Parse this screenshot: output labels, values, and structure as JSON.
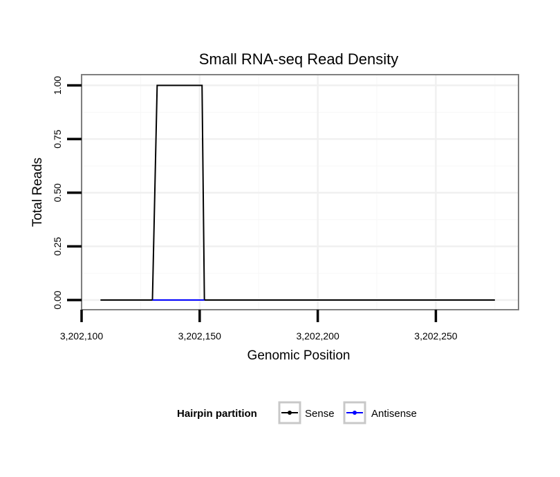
{
  "chart_data": {
    "type": "line",
    "title": "Small RNA-seq Read Density",
    "xlabel": "Genomic Position",
    "ylabel": "Total Reads",
    "xlim": [
      3202100,
      3202285
    ],
    "ylim": [
      -0.045,
      1.05
    ],
    "x_ticks": [
      3202100,
      3202150,
      3202200,
      3202250
    ],
    "x_tick_labels": [
      "3,202,100",
      "3,202,150",
      "3,202,200",
      "3,202,250"
    ],
    "y_ticks": [
      0,
      0.25,
      0.5,
      0.75,
      1.0
    ],
    "y_tick_labels": [
      "0.00",
      "0.25",
      "0.50",
      "0.75",
      "1.00"
    ],
    "grid": true,
    "series": [
      {
        "name": "Sense",
        "color": "#000000",
        "x": [
          3202108,
          3202130,
          3202132,
          3202151,
          3202152,
          3202275
        ],
        "y": [
          0,
          0,
          1,
          1,
          0,
          0
        ]
      },
      {
        "name": "Antisense",
        "color": "#0000ff",
        "x": [
          3202130,
          3202152
        ],
        "y": [
          0,
          0
        ]
      }
    ],
    "legend": {
      "title": "Hairpin partition",
      "position": "bottom",
      "entries": [
        "Sense",
        "Antisense"
      ]
    }
  }
}
